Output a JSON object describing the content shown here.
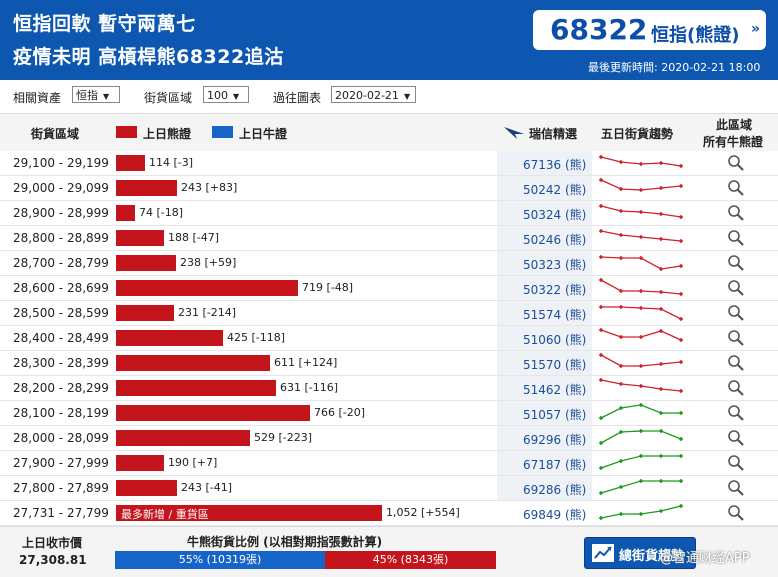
{
  "header": {
    "headline1": "恒指回軟 暫守兩萬七",
    "headline2": "疫情未明 高槓桿熊68322追沽",
    "hsi_box": {
      "code": "68322",
      "label": "恒指(熊證)",
      "arrow": "»"
    },
    "updated": "最後更新時間: 2020-02-21 18:00"
  },
  "filters": {
    "asset_label": "相關資產",
    "asset_value": "恒指",
    "zone_label": "街貨區域",
    "zone_value": "100",
    "past_label": "過往圖表",
    "past_value": "2020-02-21"
  },
  "columns": {
    "zone": "街貨區域",
    "bear_legend": "上日熊證",
    "bull_legend": "上日牛證",
    "ubs_pick": "瑞信精選",
    "trend": "五日街貨趨勢",
    "all_line1": "此區域",
    "all_line2": "所有牛熊證"
  },
  "colors": {
    "bear": "#c4151c",
    "bull": "#1764c8",
    "trend_down": "#d0212a",
    "trend_up": "#1d9a1d"
  },
  "bar_max": 1052,
  "rows": [
    {
      "range": "29,100 - 29,199",
      "value": 114,
      "label": "114 [-3]",
      "cbbc": "67136 (熊)",
      "trend": "down",
      "spark": [
        5,
        10,
        12,
        11,
        14
      ]
    },
    {
      "range": "29,000 - 29,099",
      "value": 243,
      "label": "243 [+83]",
      "cbbc": "50242 (熊)",
      "trend": "down",
      "spark": [
        3,
        12,
        13,
        11,
        9
      ]
    },
    {
      "range": "28,900 - 28,999",
      "value": 74,
      "label": "74 [-18]",
      "cbbc": "50324 (熊)",
      "trend": "down",
      "spark": [
        4,
        9,
        10,
        12,
        15
      ]
    },
    {
      "range": "28,800 - 28,899",
      "value": 188,
      "label": "188 [-47]",
      "cbbc": "50246 (熊)",
      "trend": "down",
      "spark": [
        4,
        8,
        10,
        12,
        14
      ]
    },
    {
      "range": "28,700 - 28,799",
      "value": 238,
      "label": "238 [+59]",
      "cbbc": "50323 (熊)",
      "trend": "down",
      "spark": [
        5,
        6,
        6,
        17,
        14
      ]
    },
    {
      "range": "28,600 - 28,699",
      "value": 719,
      "label": "719 [-48]",
      "cbbc": "50322 (熊)",
      "trend": "down",
      "spark": [
        3,
        14,
        14,
        15,
        17
      ]
    },
    {
      "range": "28,500 - 28,599",
      "value": 231,
      "label": "231 [-214]",
      "cbbc": "51574 (熊)",
      "trend": "down",
      "spark": [
        5,
        5,
        6,
        7,
        17
      ]
    },
    {
      "range": "28,400 - 28,499",
      "value": 425,
      "label": "425 [-118]",
      "cbbc": "51060 (熊)",
      "trend": "down",
      "spark": [
        3,
        10,
        10,
        4,
        13
      ]
    },
    {
      "range": "28,300 - 28,399",
      "value": 611,
      "label": "611 [+124]",
      "cbbc": "51570 (熊)",
      "trend": "down",
      "spark": [
        3,
        14,
        14,
        12,
        10
      ]
    },
    {
      "range": "28,200 - 28,299",
      "value": 631,
      "label": "631 [-116]",
      "cbbc": "51462 (熊)",
      "trend": "down",
      "spark": [
        3,
        7,
        9,
        12,
        14
      ]
    },
    {
      "range": "28,100 - 28,199",
      "value": 766,
      "label": "766 [-20]",
      "cbbc": "51057 (熊)",
      "trend": "up",
      "spark": [
        16,
        6,
        3,
        11,
        11
      ]
    },
    {
      "range": "28,000 - 28,099",
      "value": 529,
      "label": "529 [-223]",
      "cbbc": "69296 (熊)",
      "trend": "up",
      "spark": [
        16,
        5,
        4,
        4,
        12
      ]
    },
    {
      "range": "27,900 - 27,999",
      "value": 190,
      "label": "190 [+7]",
      "cbbc": "67187 (熊)",
      "trend": "up",
      "spark": [
        16,
        9,
        4,
        4,
        4
      ]
    },
    {
      "range": "27,800 - 27,899",
      "value": 243,
      "label": "243 [-41]",
      "cbbc": "69286 (熊)",
      "trend": "up",
      "spark": [
        16,
        10,
        4,
        4,
        4
      ]
    },
    {
      "range": "27,731 - 27,799",
      "value": 1052,
      "label": "1,052 [+554]",
      "cbbc": "69849 (熊)",
      "trend": "up",
      "spark": [
        16,
        12,
        12,
        9,
        4
      ],
      "tag": "最多新增 / 重貨區",
      "highlight": true
    }
  ],
  "footer": {
    "close_label": "上日收市價",
    "close_value": "27,308.81",
    "ratio_title": "牛熊街貨比例 (以相對期指張數計算)",
    "bull_pct": 55,
    "bull_label": "55% (10319張)",
    "bear_pct": 45,
    "bear_label": "45% (8343張)",
    "trend_button": "總街貨趨勢"
  },
  "watermark": "@智通财经APP"
}
